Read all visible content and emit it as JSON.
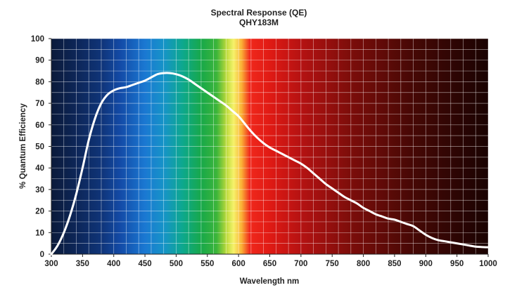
{
  "chart_data": {
    "type": "line",
    "title": "Spectral Response (QE)",
    "subtitle": "QHY183M",
    "xlabel": "Wavelength nm",
    "ylabel": "% Quantum Efficiency",
    "xlim": [
      300,
      1000
    ],
    "ylim": [
      0,
      100
    ],
    "x_ticks": [
      300,
      350,
      400,
      450,
      500,
      550,
      600,
      650,
      700,
      750,
      800,
      850,
      900,
      950,
      1000
    ],
    "y_ticks": [
      0,
      10,
      20,
      30,
      40,
      50,
      60,
      70,
      80,
      90,
      100
    ],
    "x_grid_step": 20,
    "y_grid_step": 5,
    "grid": true,
    "background": "visible-spectrum gradient",
    "series": [
      {
        "name": "QHY183M QE",
        "color": "#ffffff",
        "points": [
          [
            300,
            0
          ],
          [
            310,
            4
          ],
          [
            320,
            10
          ],
          [
            330,
            18
          ],
          [
            340,
            28
          ],
          [
            350,
            40
          ],
          [
            360,
            53
          ],
          [
            370,
            63
          ],
          [
            380,
            70
          ],
          [
            390,
            74
          ],
          [
            400,
            76
          ],
          [
            410,
            77
          ],
          [
            420,
            77.5
          ],
          [
            430,
            78.5
          ],
          [
            440,
            79.5
          ],
          [
            450,
            80.5
          ],
          [
            460,
            82
          ],
          [
            470,
            83.5
          ],
          [
            480,
            84
          ],
          [
            490,
            84
          ],
          [
            500,
            83.5
          ],
          [
            510,
            82.5
          ],
          [
            520,
            81
          ],
          [
            530,
            79
          ],
          [
            540,
            77
          ],
          [
            550,
            75
          ],
          [
            560,
            73
          ],
          [
            570,
            71
          ],
          [
            580,
            69
          ],
          [
            590,
            66.5
          ],
          [
            600,
            64
          ],
          [
            610,
            60.5
          ],
          [
            620,
            57
          ],
          [
            630,
            54
          ],
          [
            640,
            51.5
          ],
          [
            650,
            49.5
          ],
          [
            660,
            48
          ],
          [
            670,
            46.5
          ],
          [
            680,
            45
          ],
          [
            690,
            43.5
          ],
          [
            700,
            42
          ],
          [
            710,
            40
          ],
          [
            720,
            37.5
          ],
          [
            730,
            35
          ],
          [
            740,
            32.5
          ],
          [
            750,
            30.5
          ],
          [
            760,
            28.5
          ],
          [
            770,
            26.5
          ],
          [
            780,
            25
          ],
          [
            790,
            23.5
          ],
          [
            800,
            21.5
          ],
          [
            810,
            20
          ],
          [
            820,
            18.5
          ],
          [
            830,
            17.5
          ],
          [
            840,
            16.5
          ],
          [
            850,
            16
          ],
          [
            860,
            15
          ],
          [
            870,
            14
          ],
          [
            880,
            13
          ],
          [
            890,
            11
          ],
          [
            900,
            9
          ],
          [
            910,
            7.5
          ],
          [
            920,
            6.5
          ],
          [
            930,
            6
          ],
          [
            940,
            5.5
          ],
          [
            950,
            5
          ],
          [
            960,
            4.5
          ],
          [
            970,
            4
          ],
          [
            980,
            3.5
          ],
          [
            990,
            3.3
          ],
          [
            1000,
            3.2
          ]
        ]
      }
    ],
    "spectrum_stops": [
      {
        "nm": 300,
        "color": "#0b1a3a"
      },
      {
        "nm": 340,
        "color": "#0d2658"
      },
      {
        "nm": 380,
        "color": "#0f3478"
      },
      {
        "nm": 410,
        "color": "#134aa6"
      },
      {
        "nm": 450,
        "color": "#1a78d2"
      },
      {
        "nm": 480,
        "color": "#1693c8"
      },
      {
        "nm": 510,
        "color": "#0da88e"
      },
      {
        "nm": 540,
        "color": "#17a84a"
      },
      {
        "nm": 565,
        "color": "#3cb53a"
      },
      {
        "nm": 580,
        "color": "#b8d93a"
      },
      {
        "nm": 592,
        "color": "#f6f26a"
      },
      {
        "nm": 605,
        "color": "#fbb035"
      },
      {
        "nm": 618,
        "color": "#f0281c"
      },
      {
        "nm": 650,
        "color": "#e01a14"
      },
      {
        "nm": 700,
        "color": "#b51212"
      },
      {
        "nm": 780,
        "color": "#7c0d0a"
      },
      {
        "nm": 880,
        "color": "#460805"
      },
      {
        "nm": 1000,
        "color": "#1a0302"
      }
    ]
  }
}
